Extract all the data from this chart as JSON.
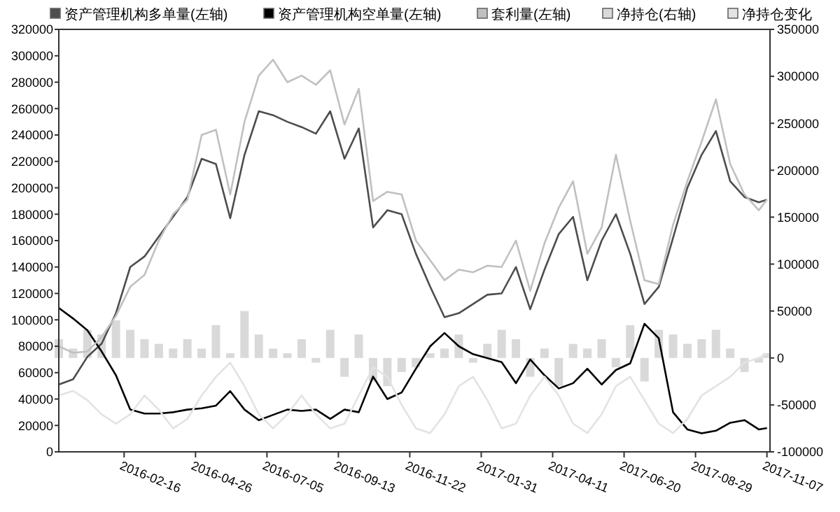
{
  "chart_data": {
    "type": "line",
    "legend": "top",
    "x": [
      "2015-12-14",
      "2015-12-28",
      "2016-01-11",
      "2016-01-25",
      "2016-02-08",
      "2016-02-22",
      "2016-03-07",
      "2016-03-21",
      "2016-04-04",
      "2016-04-18",
      "2016-05-02",
      "2016-05-16",
      "2016-05-30",
      "2016-06-13",
      "2016-06-27",
      "2016-07-11",
      "2016-07-25",
      "2016-08-08",
      "2016-08-22",
      "2016-09-05",
      "2016-09-19",
      "2016-10-03",
      "2016-10-17",
      "2016-10-31",
      "2016-11-14",
      "2016-11-28",
      "2016-12-12",
      "2016-12-26",
      "2017-01-09",
      "2017-01-23",
      "2017-02-06",
      "2017-02-20",
      "2017-03-06",
      "2017-03-20",
      "2017-04-03",
      "2017-04-17",
      "2017-05-01",
      "2017-05-15",
      "2017-05-29",
      "2017-06-12",
      "2017-06-26",
      "2017-07-10",
      "2017-07-24",
      "2017-08-07",
      "2017-08-21",
      "2017-09-04",
      "2017-09-18",
      "2017-10-02",
      "2017-10-16",
      "2017-10-30",
      "2017-11-07"
    ],
    "series": [
      {
        "name": "资产管理机构多单量(左轴)",
        "color": "#4d4d4d",
        "values": [
          51000,
          55000,
          72000,
          82000,
          105000,
          140000,
          148000,
          163000,
          178000,
          193000,
          222000,
          218000,
          177000,
          225000,
          258000,
          255000,
          250000,
          246000,
          241000,
          258000,
          222000,
          245000,
          170000,
          183000,
          180000,
          150000,
          125000,
          102000,
          105000,
          112000,
          119000,
          120000,
          140000,
          108000,
          138000,
          165000,
          178000,
          130000,
          160000,
          180000,
          150000,
          112000,
          125000,
          162000,
          200000,
          225000,
          243000,
          205000,
          193000,
          189000,
          191000
        ]
      },
      {
        "name": "资产管理机构空单量(左轴)",
        "color": "#000000",
        "values": [
          109000,
          101000,
          92000,
          76000,
          58000,
          32000,
          29000,
          29000,
          30000,
          32000,
          33000,
          35000,
          46000,
          32000,
          24000,
          28000,
          32000,
          31000,
          32000,
          25000,
          32000,
          30000,
          57000,
          40000,
          45000,
          63000,
          80000,
          90000,
          80000,
          74000,
          71000,
          68000,
          52000,
          70000,
          58000,
          48000,
          52000,
          63000,
          51000,
          62000,
          67000,
          97000,
          86000,
          30000,
          17000,
          14000,
          16000,
          22000,
          24000,
          17000,
          18000
        ]
      },
      {
        "name": "套利量(左轴)",
        "color": "#c0c0c0",
        "values": [
          80000,
          75000,
          76000,
          87000,
          103000,
          125000,
          134000,
          160000,
          180000,
          191000,
          240000,
          244000,
          195000,
          250000,
          285000,
          297000,
          280000,
          285000,
          278000,
          289000,
          248000,
          275000,
          190000,
          197000,
          195000,
          160000,
          145000,
          130000,
          138000,
          136000,
          141000,
          140000,
          160000,
          122000,
          158000,
          185000,
          205000,
          150000,
          170000,
          225000,
          175000,
          130000,
          127000,
          172000,
          205000,
          235000,
          267000,
          218000,
          195000,
          183000,
          191000
        ]
      },
      {
        "name": "净持仓(右轴)",
        "type": "bar",
        "axis": "y2",
        "color": "#d9d9d9",
        "values": [
          20000,
          10000,
          30000,
          25000,
          40000,
          30000,
          20000,
          15000,
          10000,
          20000,
          10000,
          35000,
          5000,
          50000,
          25000,
          10000,
          5000,
          20000,
          -5000,
          30000,
          -20000,
          25000,
          -25000,
          -30000,
          -15000,
          -10000,
          5000,
          10000,
          25000,
          -5000,
          15000,
          30000,
          20000,
          -20000,
          10000,
          -30000,
          15000,
          10000,
          20000,
          -10000,
          35000,
          -25000,
          30000,
          25000,
          15000,
          20000,
          30000,
          10000,
          -15000,
          -5000,
          5000
        ]
      },
      {
        "name": "净持仓变化",
        "axis": "y2",
        "color": "#e3e3e3",
        "values": [
          -40000,
          -35000,
          -45000,
          -60000,
          -70000,
          -60000,
          -40000,
          -55000,
          -75000,
          -65000,
          -40000,
          -20000,
          -5000,
          -30000,
          -60000,
          -75000,
          -60000,
          -40000,
          -60000,
          -75000,
          -70000,
          -40000,
          -10000,
          -20000,
          -50000,
          -75000,
          -80000,
          -60000,
          -30000,
          -20000,
          -45000,
          -75000,
          -70000,
          -40000,
          -20000,
          -40000,
          -70000,
          -80000,
          -60000,
          -30000,
          -20000,
          -45000,
          -70000,
          -80000,
          -65000,
          -40000,
          -30000,
          -20000,
          -5000,
          0,
          5000
        ]
      }
    ],
    "xlim": [
      "2015-12-14",
      "2017-11-10"
    ],
    "xticks": [
      "2016-02-16",
      "2016-04-26",
      "2016-07-05",
      "2016-09-13",
      "2016-11-22",
      "2017-01-31",
      "2017-04-11",
      "2017-06-20",
      "2017-08-29",
      "2017-11-07"
    ],
    "ylim": [
      0,
      320000
    ],
    "yticks": [
      0,
      20000,
      40000,
      60000,
      80000,
      100000,
      120000,
      140000,
      160000,
      180000,
      200000,
      220000,
      240000,
      260000,
      280000,
      300000,
      320000
    ],
    "y2lim": [
      -100000,
      350000
    ],
    "y2ticks": [
      -100000,
      -50000,
      0,
      50000,
      100000,
      150000,
      200000,
      250000,
      300000,
      350000
    ]
  }
}
